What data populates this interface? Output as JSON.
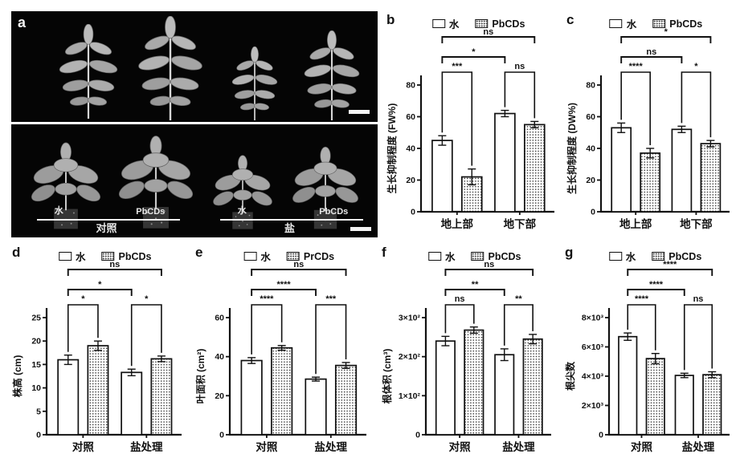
{
  "figure_panels": [
    "a",
    "b",
    "c",
    "d",
    "e",
    "f",
    "g"
  ],
  "panel_a": {
    "letter": "a",
    "groups": [
      {
        "water": "水",
        "treatment": "PbCDs",
        "name": "对照"
      },
      {
        "water": "水",
        "treatment": "PbCDs",
        "name": "盐"
      }
    ]
  },
  "chart_data": [
    {
      "type": "bar",
      "panel": "b",
      "ylabel": "生长抑制程度 (FW%)",
      "categories": [
        "地上部",
        "地下部"
      ],
      "legend": [
        "水",
        "PbCDs"
      ],
      "series": [
        {
          "name": "水",
          "values": [
            45,
            62
          ],
          "errors": [
            3,
            2
          ]
        },
        {
          "name": "PbCDs",
          "values": [
            22,
            55
          ],
          "errors": [
            5,
            2
          ]
        }
      ],
      "ylim": [
        0,
        80
      ],
      "yticks": [
        0,
        20,
        40,
        60,
        80
      ],
      "ytick_labels": [
        "0",
        "20",
        "40",
        "60",
        "80"
      ],
      "pair_significance": [
        "***",
        "ns"
      ],
      "cross_significance": [
        {
          "label": "ns",
          "from_bar": 0,
          "to_bar": 3
        },
        {
          "label": "*",
          "from_bar": 0,
          "to_bar": 2
        }
      ]
    },
    {
      "type": "bar",
      "panel": "c",
      "ylabel": "生长抑制程度 (DW%)",
      "categories": [
        "地上部",
        "地下部"
      ],
      "legend": [
        "水",
        "PbCDs"
      ],
      "series": [
        {
          "name": "水",
          "values": [
            53,
            52
          ],
          "errors": [
            3,
            2
          ]
        },
        {
          "name": "PbCDs",
          "values": [
            37,
            43
          ],
          "errors": [
            3,
            2
          ]
        }
      ],
      "ylim": [
        0,
        80
      ],
      "yticks": [
        0,
        20,
        40,
        60,
        80
      ],
      "ytick_labels": [
        "0",
        "20",
        "40",
        "60",
        "80"
      ],
      "pair_significance": [
        "****",
        "*"
      ],
      "cross_significance": [
        {
          "label": "*",
          "from_bar": 0,
          "to_bar": 3
        },
        {
          "label": "ns",
          "from_bar": 0,
          "to_bar": 2
        }
      ]
    },
    {
      "type": "bar",
      "panel": "d",
      "ylabel": "株高 (cm)",
      "categories": [
        "对照",
        "盐处理"
      ],
      "legend": [
        "水",
        "PbCDs"
      ],
      "series": [
        {
          "name": "水",
          "values": [
            16,
            13.3
          ],
          "errors": [
            1,
            0.7
          ]
        },
        {
          "name": "PbCDs",
          "values": [
            19,
            16.2
          ],
          "errors": [
            1,
            0.6
          ]
        }
      ],
      "ylim": [
        0,
        25
      ],
      "yticks": [
        0,
        5,
        10,
        15,
        20,
        25
      ],
      "ytick_labels": [
        "0",
        "5",
        "10",
        "15",
        "20",
        "25"
      ],
      "pair_significance": [
        "*",
        "*"
      ],
      "cross_significance": [
        {
          "label": "ns",
          "from_bar": 0,
          "to_bar": 3
        },
        {
          "label": "*",
          "from_bar": 0,
          "to_bar": 2
        }
      ]
    },
    {
      "type": "bar",
      "panel": "e",
      "ylabel": "叶面积 (cm²)",
      "categories": [
        "对照",
        "盐处理"
      ],
      "legend": [
        "水",
        "PrCDs"
      ],
      "series": [
        {
          "name": "水",
          "values": [
            38,
            28.5
          ],
          "errors": [
            1.5,
            1
          ]
        },
        {
          "name": "PrCDs",
          "values": [
            44.5,
            35.5
          ],
          "errors": [
            1.2,
            1.5
          ]
        }
      ],
      "ylim": [
        0,
        60
      ],
      "yticks": [
        0,
        20,
        40,
        60
      ],
      "ytick_labels": [
        "0",
        "20",
        "40",
        "60"
      ],
      "pair_significance": [
        "****",
        "***"
      ],
      "cross_significance": [
        {
          "label": "ns",
          "from_bar": 0,
          "to_bar": 3
        },
        {
          "label": "****",
          "from_bar": 0,
          "to_bar": 2
        }
      ]
    },
    {
      "type": "bar",
      "panel": "f",
      "ylabel": "根体积 (cm³)",
      "categories": [
        "对照",
        "盐处理"
      ],
      "legend": [
        "水",
        "PbCDs"
      ],
      "series": [
        {
          "name": "水",
          "values": [
            240,
            205
          ],
          "errors": [
            12,
            15
          ]
        },
        {
          "name": "PbCDs",
          "values": [
            268,
            245
          ],
          "errors": [
            8,
            12
          ]
        }
      ],
      "ylim": [
        0,
        300
      ],
      "yticks": [
        0,
        100,
        200,
        300
      ],
      "ytick_labels": [
        "0",
        "1×10²",
        "2×10²",
        "3×10²"
      ],
      "pair_significance": [
        "ns",
        "**"
      ],
      "cross_significance": [
        {
          "label": "ns",
          "from_bar": 0,
          "to_bar": 3
        },
        {
          "label": "**",
          "from_bar": 0,
          "to_bar": 2
        }
      ]
    },
    {
      "type": "bar",
      "panel": "g",
      "ylabel": "根尖数",
      "categories": [
        "对照",
        "盐处理"
      ],
      "legend": [
        "水",
        "PbCDs"
      ],
      "series": [
        {
          "name": "水",
          "values": [
            6700,
            4050
          ],
          "errors": [
            250,
            150
          ]
        },
        {
          "name": "PbCDs",
          "values": [
            5200,
            4100
          ],
          "errors": [
            350,
            200
          ]
        }
      ],
      "ylim": [
        0,
        8000
      ],
      "yticks": [
        0,
        2000,
        4000,
        6000,
        8000
      ],
      "ytick_labels": [
        "0",
        "2×10³",
        "4×10³",
        "6×10³",
        "8×10³"
      ],
      "pair_significance": [
        "****",
        "ns"
      ],
      "cross_significance": [
        {
          "label": "****",
          "from_bar": 0,
          "to_bar": 3
        },
        {
          "label": "****",
          "from_bar": 0,
          "to_bar": 2
        }
      ]
    }
  ]
}
